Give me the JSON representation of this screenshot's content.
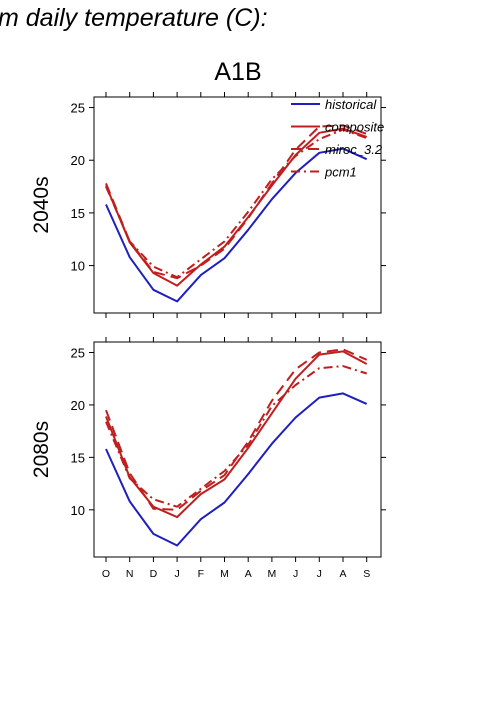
{
  "figure": {
    "heading": "m daily temperature (C):",
    "scenario": "A1B"
  },
  "chart_data": {
    "type": "line",
    "title": "A1B",
    "categories": [
      "O",
      "N",
      "D",
      "J",
      "F",
      "M",
      "A",
      "M",
      "J",
      "J",
      "A",
      "S"
    ],
    "yticks": [
      10,
      15,
      20,
      25
    ],
    "legend": {
      "placement": "top-right",
      "entries": [
        "historical",
        "composite",
        "miroc_3.2",
        "pcm1"
      ]
    },
    "colors": {
      "historical": "#1f1fbf",
      "scenario": "#bf1f1f"
    },
    "panels": [
      {
        "label": "2040s",
        "ylim": [
          5.5,
          26
        ],
        "series": [
          {
            "name": "historical",
            "style": "solid",
            "color": "#1f1fbf",
            "values": [
              15.8,
              10.8,
              7.7,
              6.6,
              9.1,
              10.7,
              13.4,
              16.3,
              18.8,
              20.7,
              21.1,
              20.1
            ]
          },
          {
            "name": "composite",
            "style": "solid",
            "color": "#bf1f1f",
            "values": [
              17.6,
              12.2,
              9.3,
              8.1,
              10.1,
              11.8,
              14.6,
              17.6,
              20.5,
              22.6,
              23.0,
              22.2
            ]
          },
          {
            "name": "miroc_3.2",
            "style": "dashed",
            "color": "#bf1f1f",
            "values": [
              17.8,
              12.3,
              9.4,
              8.8,
              10.0,
              11.6,
              14.5,
              17.8,
              21.0,
              23.2,
              23.3,
              22.5
            ]
          },
          {
            "name": "pcm1",
            "style": "dashdot",
            "color": "#bf1f1f",
            "values": [
              17.5,
              12.3,
              9.9,
              8.9,
              10.6,
              12.3,
              15.1,
              18.2,
              20.4,
              22.0,
              22.9,
              22.1
            ]
          }
        ]
      },
      {
        "label": "2080s",
        "ylim": [
          5.5,
          26
        ],
        "series": [
          {
            "name": "historical",
            "style": "solid",
            "color": "#1f1fbf",
            "values": [
              15.8,
              10.8,
              7.7,
              6.6,
              9.1,
              10.7,
              13.4,
              16.3,
              18.8,
              20.7,
              21.1,
              20.1
            ]
          },
          {
            "name": "composite",
            "style": "solid",
            "color": "#bf1f1f",
            "values": [
              18.9,
              13.1,
              10.3,
              9.3,
              11.5,
              12.9,
              15.9,
              19.2,
              22.5,
              24.8,
              25.1,
              23.9
            ]
          },
          {
            "name": "miroc_3.2",
            "style": "dashed",
            "color": "#bf1f1f",
            "values": [
              19.5,
              13.5,
              10.1,
              10.0,
              11.8,
              13.3,
              16.5,
              20.4,
              23.4,
              25.0,
              25.3,
              24.3
            ]
          },
          {
            "name": "pcm1",
            "style": "dashdot",
            "color": "#bf1f1f",
            "values": [
              18.4,
              13.0,
              11.0,
              10.3,
              12.0,
              13.7,
              16.2,
              19.9,
              21.9,
              23.5,
              23.7,
              23.0
            ]
          }
        ]
      }
    ]
  }
}
